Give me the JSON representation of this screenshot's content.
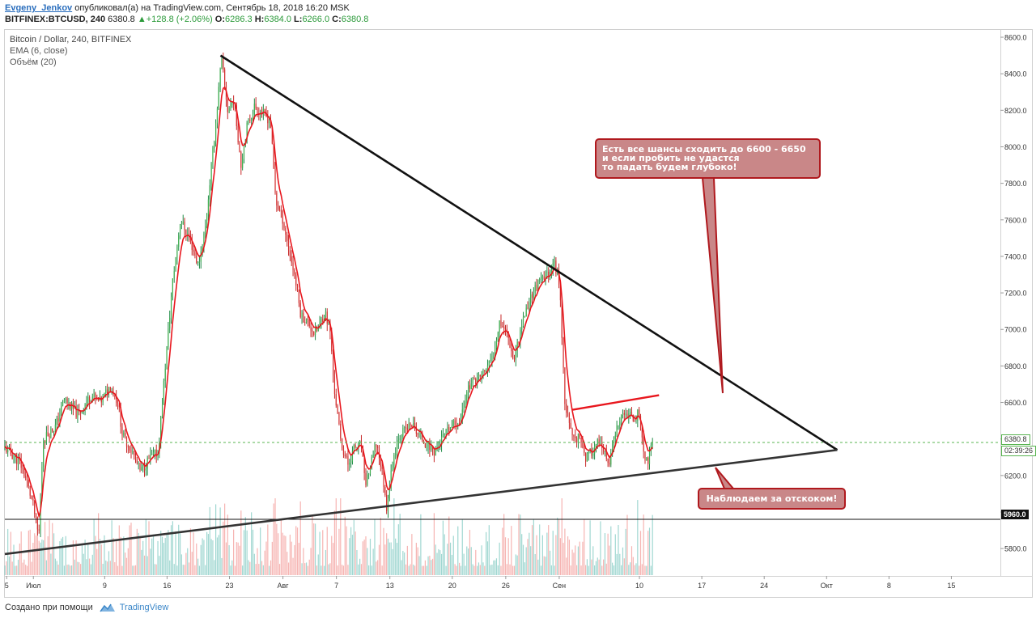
{
  "header": {
    "author": "Evgeny_Jenkov",
    "published_text": " опубликовал(а) на TradingView.com, Сентябрь 18, 2018 16:20 MSK",
    "symbol": "BITFINEX:BTCUSD, 240",
    "last": "6380.8",
    "change": "+128.8 (+2.06%)",
    "o_label": "O:",
    "o_value": "6286.3",
    "h_label": "H:",
    "h_value": "6384.0",
    "l_label": "L:",
    "l_value": "6266.0",
    "c_label": "C:",
    "c_value": "6380.8"
  },
  "legend": {
    "title": "Bitcoin / Dollar, 240, BITFINEX",
    "ema": "EMA (6, close)",
    "volume": "Объём (20)"
  },
  "annotations": {
    "callout_top": [
      "Есть все шансы сходить до 6600 - 6650",
      "и если пробить не удастся",
      "то падать будем глубоко!"
    ],
    "callout_bottom": "Наблюдаем за отскоком!"
  },
  "price_tags": {
    "last_price": "6380.8",
    "countdown": "02:39:26",
    "level": "5960.0"
  },
  "footer": {
    "created_with": "Создано при помощи",
    "brand": "TradingView"
  },
  "colors": {
    "up": "#26a69a",
    "down": "#ef5350",
    "ema": "#e8161d",
    "trendline": "#111111",
    "callout_fill": "#c98788",
    "callout_border": "#b0191e",
    "last_price_line": "#59b451"
  },
  "chart_data": {
    "type": "candlestick",
    "title": "Bitcoin / Dollar, 240, BITFINEX",
    "y_ticks": [
      5800,
      6000,
      6200,
      6400,
      6600,
      6800,
      7000,
      7200,
      7400,
      7600,
      7800,
      8000,
      8200,
      8400,
      8600
    ],
    "y_tick_labels": [
      "5800.0",
      "6000.0",
      "6200.0",
      "6400.0",
      "6600.0",
      "6800.0",
      "7000.0",
      "7200.0",
      "7400.0",
      "7600.0",
      "7800.0",
      "8000.0",
      "8200.0",
      "8400.0",
      "8600.0"
    ],
    "ylim": [
      5650,
      8640
    ],
    "x_axis_labels": [
      "5",
      "Июл",
      "9",
      "16",
      "23",
      "Авг",
      "7",
      "13",
      "20",
      "26",
      "Сен",
      "10",
      "17",
      "24",
      "Окт",
      "8",
      "15"
    ],
    "x_axis_label_days": [
      -9,
      -6,
      2,
      9,
      16,
      22,
      28,
      34,
      41,
      47,
      53,
      62,
      69,
      76,
      83,
      90,
      97
    ],
    "x_unit": "days relative to 1 Aug 2018",
    "xlim": [
      -9.2,
      102.5
    ],
    "price_path": [
      [
        -9.2,
        6350
      ],
      [
        -7.5,
        6270
      ],
      [
        -6.8,
        6180
      ],
      [
        -6.0,
        6030
      ],
      [
        -5.4,
        5860
      ],
      [
        -4.9,
        6400
      ],
      [
        -3.5,
        6470
      ],
      [
        -2.5,
        6620
      ],
      [
        -1.0,
        6530
      ],
      [
        0.5,
        6640
      ],
      [
        1.5,
        6600
      ],
      [
        2.6,
        6690
      ],
      [
        3.5,
        6600
      ],
      [
        4.0,
        6420
      ],
      [
        5.0,
        6340
      ],
      [
        6.0,
        6220
      ],
      [
        7.0,
        6290
      ],
      [
        8.0,
        6330
      ],
      [
        8.8,
        6800
      ],
      [
        9.6,
        7250
      ],
      [
        10.5,
        7600
      ],
      [
        11.5,
        7500
      ],
      [
        12.5,
        7350
      ],
      [
        13.3,
        7560
      ],
      [
        14.0,
        7900
      ],
      [
        14.5,
        8150
      ],
      [
        15.1,
        8480
      ],
      [
        15.8,
        8200
      ],
      [
        16.5,
        8260
      ],
      [
        17.3,
        7900
      ],
      [
        17.9,
        8100
      ],
      [
        18.8,
        8220
      ],
      [
        19.8,
        8180
      ],
      [
        20.6,
        8140
      ],
      [
        21.2,
        7700
      ],
      [
        22.0,
        7600
      ],
      [
        22.6,
        7450
      ],
      [
        23.3,
        7300
      ],
      [
        24.0,
        7080
      ],
      [
        24.8,
        7040
      ],
      [
        25.5,
        6980
      ],
      [
        26.0,
        7010
      ],
      [
        26.7,
        7100
      ],
      [
        27.3,
        6990
      ],
      [
        27.7,
        6700
      ],
      [
        28.5,
        6380
      ],
      [
        29.3,
        6260
      ],
      [
        30.0,
        6350
      ],
      [
        30.8,
        6370
      ],
      [
        31.2,
        6150
      ],
      [
        31.9,
        6260
      ],
      [
        32.5,
        6380
      ],
      [
        33.2,
        6200
      ],
      [
        33.6,
        6020
      ],
      [
        34.4,
        6300
      ],
      [
        35.0,
        6420
      ],
      [
        35.7,
        6450
      ],
      [
        36.5,
        6480
      ],
      [
        37.3,
        6420
      ],
      [
        38.0,
        6380
      ],
      [
        39.0,
        6330
      ],
      [
        40.0,
        6410
      ],
      [
        41.0,
        6470
      ],
      [
        42.0,
        6510
      ],
      [
        42.7,
        6680
      ],
      [
        43.5,
        6720
      ],
      [
        44.5,
        6760
      ],
      [
        45.5,
        6840
      ],
      [
        46.3,
        7050
      ],
      [
        47.2,
        6980
      ],
      [
        47.9,
        6830
      ],
      [
        48.8,
        7030
      ],
      [
        49.8,
        7180
      ],
      [
        50.5,
        7240
      ],
      [
        51.3,
        7280
      ],
      [
        52.4,
        7360
      ],
      [
        52.9,
        7300
      ],
      [
        53.2,
        7100
      ],
      [
        53.6,
        6620
      ],
      [
        54.2,
        6450
      ],
      [
        54.8,
        6400
      ],
      [
        55.3,
        6420
      ],
      [
        56.0,
        6290
      ],
      [
        56.6,
        6330
      ],
      [
        57.3,
        6380
      ],
      [
        58.0,
        6320
      ],
      [
        58.6,
        6260
      ],
      [
        59.3,
        6430
      ],
      [
        60.1,
        6520
      ],
      [
        60.6,
        6550
      ],
      [
        61.3,
        6500
      ],
      [
        61.8,
        6540
      ],
      [
        62.2,
        6460
      ],
      [
        62.6,
        6260
      ],
      [
        63.0,
        6290
      ],
      [
        63.5,
        6380
      ]
    ],
    "ema_period": 6,
    "last_price": 6380.8,
    "horizontal_level": 5960.0,
    "trendlines": [
      {
        "name": "descending-resistance",
        "from": [
          15.0,
          8500
        ],
        "to": [
          84.2,
          6340
        ]
      },
      {
        "name": "ascending-support",
        "from": [
          -9.2,
          5770
        ],
        "to": [
          84.2,
          6340
        ]
      },
      {
        "name": "target-resistance",
        "from": [
          54.5,
          6560
        ],
        "to": [
          64.2,
          6640
        ]
      }
    ]
  }
}
